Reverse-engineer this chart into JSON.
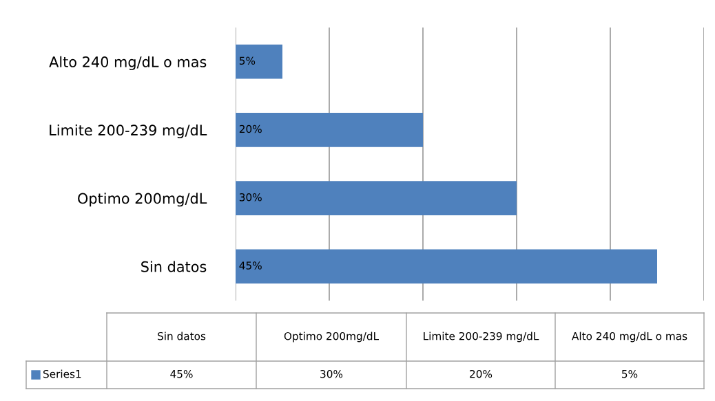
{
  "chart_data": {
    "type": "bar",
    "orientation": "horizontal",
    "categories": [
      "Alto 240 mg/dL o mas",
      "Limite 200-239 mg/dL",
      "Optimo 200mg/dL",
      "Sin datos"
    ],
    "series": [
      {
        "name": "Series1",
        "color": "#4f81bd",
        "values": [
          5,
          20,
          30,
          45
        ],
        "value_labels": [
          "5%",
          "20%",
          "30%",
          "45%"
        ]
      }
    ],
    "xlim": [
      0,
      50
    ],
    "xticks": [
      {
        "value": 0,
        "label": null
      },
      {
        "value": 10,
        "label": null
      },
      {
        "value": 20,
        "label": null
      },
      {
        "value": 30,
        "label": null
      },
      {
        "value": 40,
        "label": null
      },
      {
        "value": 50,
        "label": null
      }
    ],
    "tick_labels": "y",
    "grid": "x",
    "legend": "bottom"
  }
}
